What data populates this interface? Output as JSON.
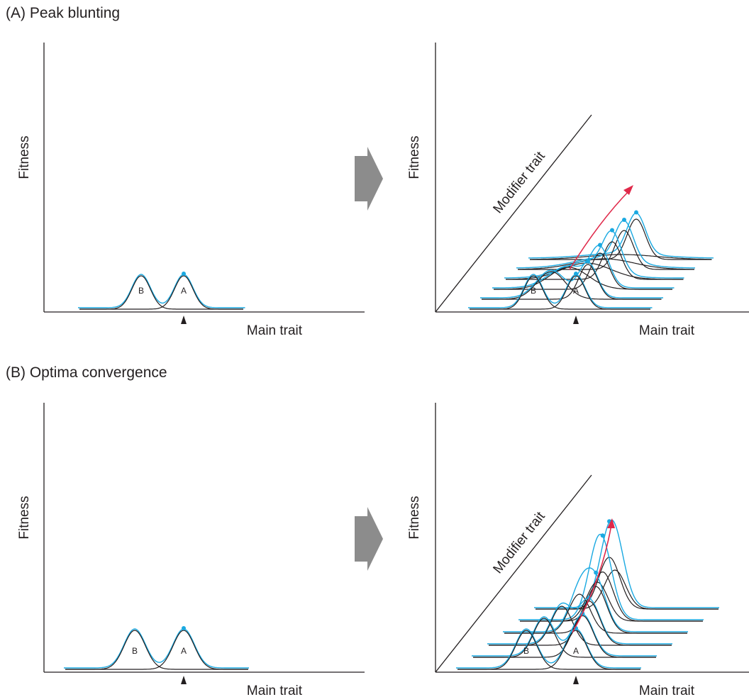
{
  "panels": [
    {
      "label": "(A) Peak blunting"
    },
    {
      "label": "(B) Optima convergence"
    }
  ],
  "axes": {
    "y_label": "Fitness",
    "x_label": "Main trait",
    "diagonal_label": "Modifier trait"
  },
  "peaks": {
    "b": "B",
    "a": "A"
  },
  "colors": {
    "axis": "#231f20",
    "total_fitness": "#1aa9e1",
    "evolution_arrow": "#e0294a",
    "transition_arrow": "#8c8c8c"
  },
  "icons": {
    "transition": "right-arrow-icon",
    "marker": "triangle-marker-icon"
  }
}
